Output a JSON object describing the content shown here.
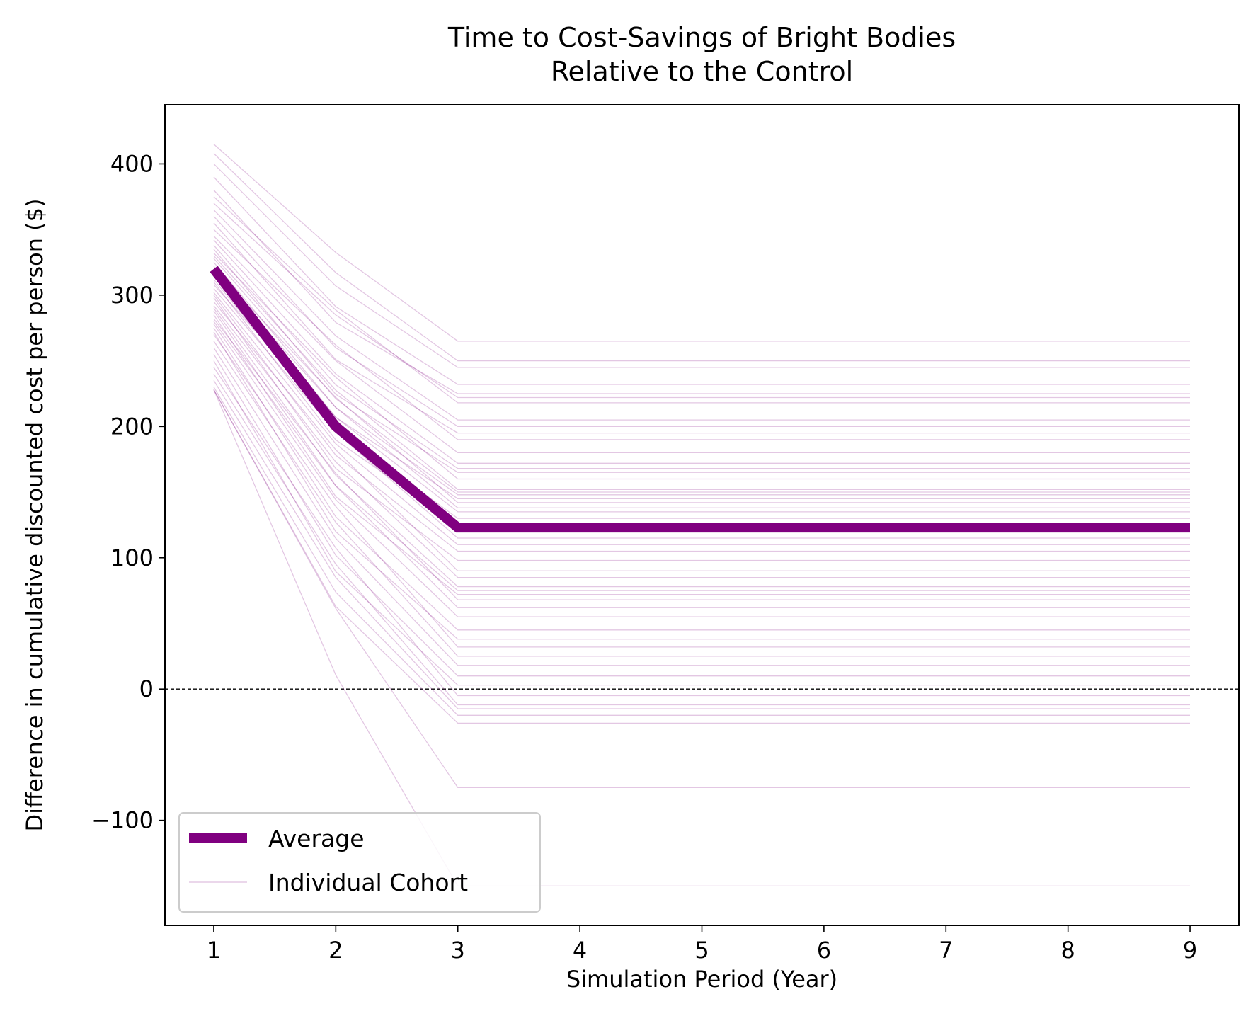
{
  "chart_data": {
    "type": "line",
    "title_lines": [
      "Time to Cost-Savings of Bright Bodies",
      "Relative to the Control"
    ],
    "xlabel": "Simulation Period (Year)",
    "ylabel": "Difference in cumulative discounted cost per person ($)",
    "xlim": [
      0.6,
      9.4
    ],
    "ylim": [
      -180,
      445
    ],
    "x_ticks": [
      1,
      2,
      3,
      4,
      5,
      6,
      7,
      8,
      9
    ],
    "y_ticks": [
      -100,
      0,
      100,
      200,
      300,
      400
    ],
    "y_tick_labels": [
      "−100",
      "0",
      "100",
      "200",
      "300",
      "400"
    ],
    "grid": false,
    "reference_line": {
      "y": 0,
      "style": "dashed",
      "color": "#000000"
    },
    "legend": {
      "position": "lower-left",
      "entries": [
        {
          "label": "Average",
          "style": "thick"
        },
        {
          "label": "Individual Cohort",
          "style": "thin"
        }
      ]
    },
    "colors": {
      "average": "#800080",
      "cohort": "#800080"
    },
    "x": [
      1,
      2,
      3,
      4,
      5,
      6,
      7,
      8,
      9
    ],
    "average": {
      "name": "Average",
      "values": [
        320,
        200,
        123,
        123,
        123,
        123,
        123,
        123,
        123
      ]
    },
    "cohorts": {
      "name": "Individual Cohort",
      "start_end_pairs": [
        [
          415,
          265
        ],
        [
          408,
          250
        ],
        [
          400,
          245
        ],
        [
          390,
          232
        ],
        [
          380,
          225
        ],
        [
          375,
          218
        ],
        [
          370,
          222
        ],
        [
          365,
          205
        ],
        [
          360,
          200
        ],
        [
          355,
          195
        ],
        [
          350,
          190
        ],
        [
          345,
          180
        ],
        [
          342,
          172
        ],
        [
          338,
          168
        ],
        [
          335,
          165
        ],
        [
          332,
          160
        ],
        [
          330,
          152
        ],
        [
          328,
          150
        ],
        [
          325,
          148
        ],
        [
          322,
          145
        ],
        [
          320,
          142
        ],
        [
          318,
          138
        ],
        [
          315,
          135
        ],
        [
          312,
          130
        ],
        [
          310,
          125
        ],
        [
          308,
          120
        ],
        [
          305,
          115
        ],
        [
          302,
          110
        ],
        [
          300,
          105
        ],
        [
          298,
          98
        ],
        [
          295,
          90
        ],
        [
          292,
          85
        ],
        [
          290,
          78
        ],
        [
          288,
          75
        ],
        [
          285,
          72
        ],
        [
          282,
          68
        ],
        [
          280,
          62
        ],
        [
          278,
          55
        ],
        [
          275,
          45
        ],
        [
          272,
          38
        ],
        [
          270,
          32
        ],
        [
          265,
          25
        ],
        [
          260,
          18
        ],
        [
          255,
          10
        ],
        [
          250,
          3
        ],
        [
          245,
          -5
        ],
        [
          240,
          -12
        ],
        [
          235,
          -15
        ],
        [
          230,
          -20
        ],
        [
          228,
          -26
        ],
        [
          228,
          -75
        ],
        [
          228,
          -150
        ]
      ]
    }
  }
}
